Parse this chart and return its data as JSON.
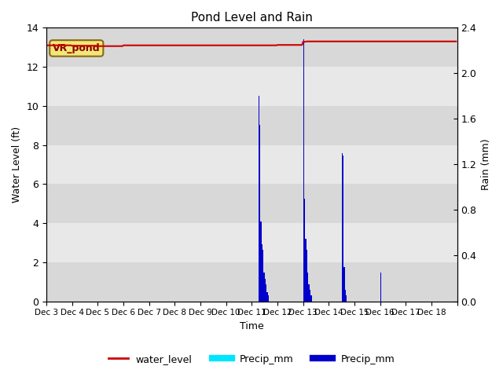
{
  "title": "Pond Level and Rain",
  "xlabel": "Time",
  "ylabel_left": "Water Level (ft)",
  "ylabel_right": "Rain (mm)",
  "annotation": "VR_pond",
  "x_tick_labels": [
    "Dec 3",
    "Dec 4",
    "Dec 5",
    "Dec 6",
    "Dec 7",
    "Dec 8",
    "Dec 9",
    "Dec 10",
    "Dec 11",
    "Dec 12",
    "Dec 13",
    "Dec 14",
    "Dec 15",
    "Dec 16",
    "Dec 17",
    "Dec 18"
  ],
  "ylim_left": [
    0,
    14
  ],
  "ylim_right": [
    0,
    2.4
  ],
  "yticks_left": [
    0,
    2,
    4,
    6,
    8,
    10,
    12,
    14
  ],
  "yticks_right": [
    0.0,
    0.4,
    0.8,
    1.2,
    1.6,
    2.0,
    2.4
  ],
  "bg_color": "#e8e8e8",
  "band_colors": [
    "#d8d8d8",
    "#e8e8e8"
  ],
  "water_level_color": "#cc0000",
  "cyan_bar_color": "#00e5ff",
  "blue_bar_color": "#0000cc",
  "legend_labels": [
    "water_level",
    "Precip_mm",
    "Precip_mm"
  ],
  "water_level_value": 13.1,
  "n_days": 16,
  "event1_day": 8,
  "event1_blue": [
    0.0,
    0.0,
    0.0,
    0.0,
    0.0,
    0.0,
    1.8,
    1.55,
    0.7,
    0.5,
    0.45,
    0.25,
    0.2,
    0.15,
    0.08,
    0.05,
    0.0,
    0.0,
    0.0,
    0.0,
    0.0,
    0.0,
    0.0,
    0.0
  ],
  "event1_cyan": [
    0.0,
    0.0,
    0.0,
    0.0,
    0.0,
    0.0,
    0.18,
    0.22,
    0.15,
    0.12,
    0.1,
    0.08,
    0.07,
    0.05,
    0.04,
    0.03,
    0.0,
    0.0,
    0.0,
    0.0,
    0.0,
    0.0,
    0.0,
    0.0
  ],
  "event2_day": 10,
  "event2_blue": [
    2.3,
    0.9,
    0.55,
    0.45,
    0.25,
    0.15,
    0.1,
    0.05,
    0.0,
    0.0,
    0.0,
    0.0,
    0.0,
    0.0,
    0.0,
    0.0,
    0.0,
    0.0,
    0.0,
    0.0,
    0.0,
    0.0,
    0.0,
    0.0
  ],
  "event2_cyan": [
    0.22,
    0.15,
    0.12,
    0.1,
    0.08,
    0.06,
    0.04,
    0.03,
    0.0,
    0.0,
    0.0,
    0.0,
    0.0,
    0.0,
    0.0,
    0.0,
    0.0,
    0.0,
    0.0,
    0.0,
    0.0,
    0.0,
    0.0,
    0.0
  ],
  "event3_day": 11,
  "event3_blue": [
    0.0,
    0.0,
    0.0,
    0.0,
    0.0,
    0.0,
    0.0,
    0.0,
    0.0,
    0.0,
    0.0,
    0.0,
    1.3,
    1.28,
    0.3,
    0.1,
    0.05,
    0.0,
    0.0,
    0.0,
    0.0,
    0.0,
    0.0,
    0.0
  ],
  "event3_cyan": [
    0.0,
    0.0,
    0.0,
    0.0,
    0.0,
    0.0,
    0.0,
    0.0,
    0.0,
    0.0,
    0.0,
    0.0,
    0.15,
    0.18,
    0.08,
    0.05,
    0.03,
    0.0,
    0.0,
    0.0,
    0.0,
    0.0,
    0.0,
    0.0
  ],
  "event4_day": 13,
  "event4_blue": [
    0.25,
    0.0,
    0.0,
    0.0,
    0.0,
    0.0,
    0.0,
    0.0,
    0.0,
    0.0,
    0.0,
    0.0,
    0.0,
    0.0,
    0.0,
    0.0,
    0.0,
    0.0,
    0.0,
    0.0,
    0.0,
    0.0,
    0.0,
    0.0
  ],
  "event4_cyan": [
    0.02,
    0.0,
    0.0,
    0.0,
    0.0,
    0.0,
    0.0,
    0.0,
    0.0,
    0.0,
    0.0,
    0.0,
    0.0,
    0.0,
    0.0,
    0.0,
    0.0,
    0.0,
    0.0,
    0.0,
    0.0,
    0.0,
    0.0,
    0.0
  ]
}
